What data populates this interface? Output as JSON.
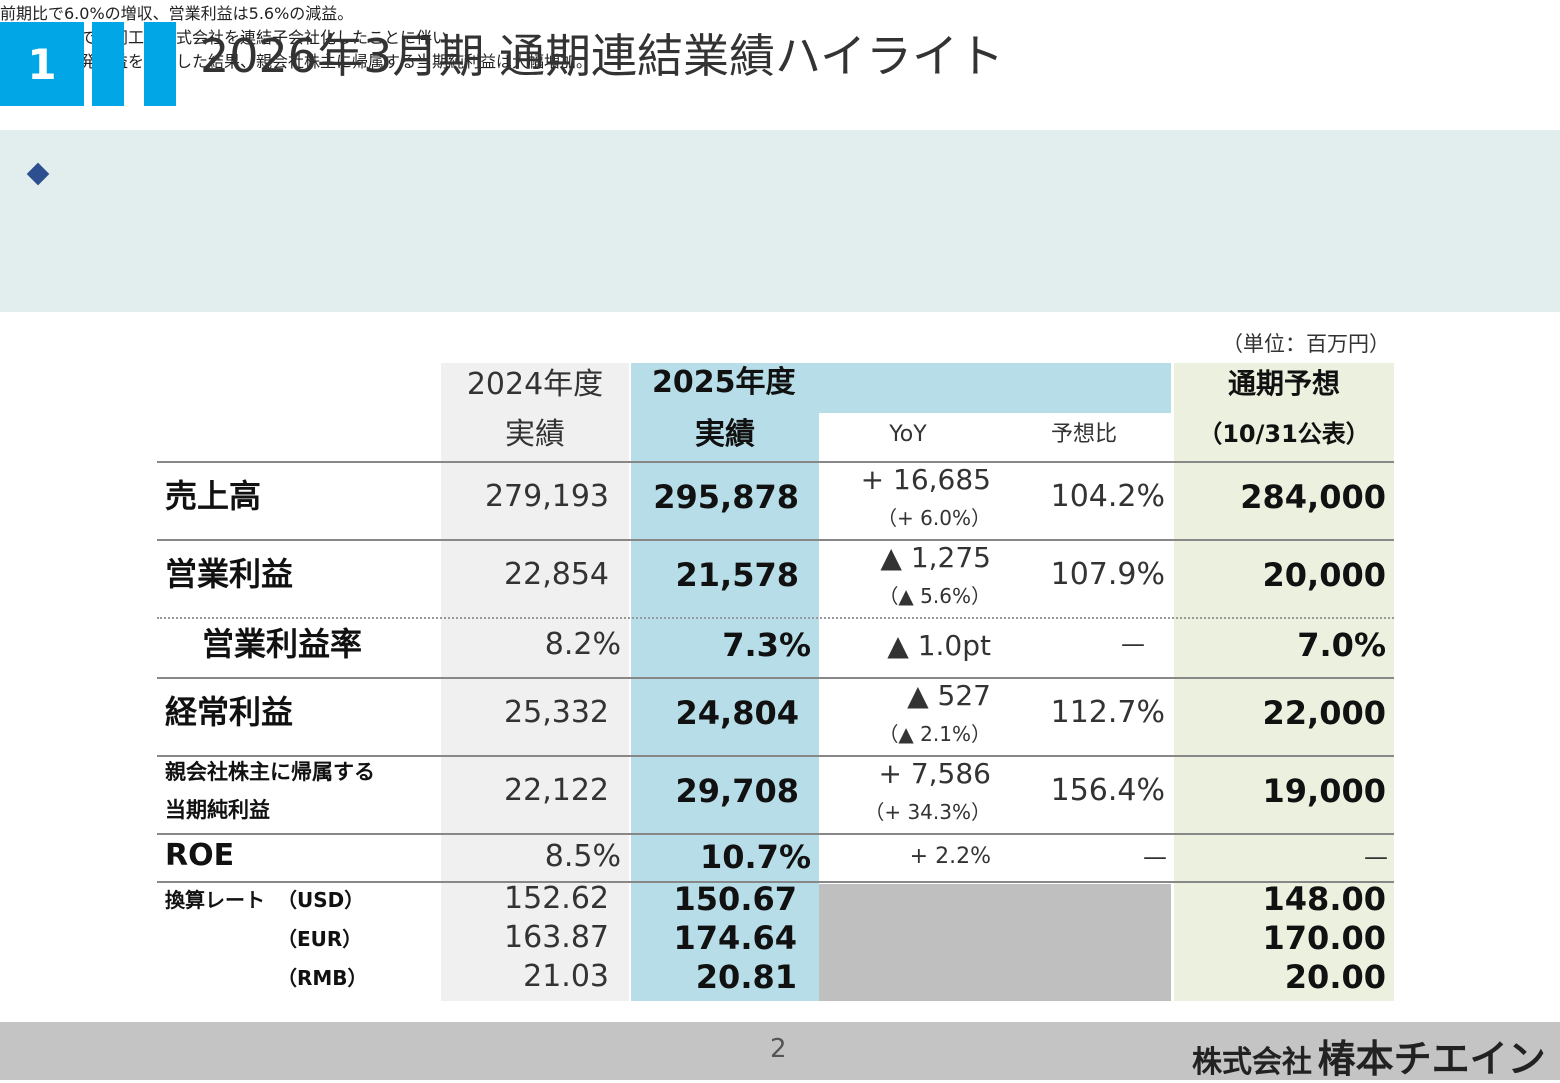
{
  "header": {
    "section_number": "1",
    "title": "2026年3月期 通期連結業績ハイライト"
  },
  "summary": {
    "lines": [
      "前期比で6.0%の増収、営業利益は5.6%の減益。",
      "１月１日付で大同工業株式会社を連結子会社化したことに伴い、",
      "負ののれん発生益を計上した結果、親会社株主に帰属する当期純利益は大幅増加。"
    ]
  },
  "table": {
    "unit": "（単位：百万円）",
    "headers": {
      "prev_year": "2024年度",
      "prev_sub": "実績",
      "cur_year": "2025年度",
      "cur_sub": "実績",
      "yoy": "YoY",
      "vs_forecast": "予想比",
      "forecast": "通期予想",
      "forecast_sub": "（10/31公表）"
    },
    "rows": [
      {
        "label": "売上高",
        "prev": "279,193",
        "cur": "295,878",
        "yoy": "+ 16,685",
        "yoy_pct": "（+ 6.0%）",
        "vs": "104.2%",
        "fc": "284,000"
      },
      {
        "label": "営業利益",
        "prev": "22,854",
        "cur": "21,578",
        "yoy": "▲ 1,275",
        "yoy_pct": "（▲ 5.6%）",
        "vs": "107.9%",
        "fc": "20,000"
      },
      {
        "label": "営業利益率",
        "prev": "8.2%",
        "cur": "7.3%",
        "yoy": "▲ 1.0pt",
        "vs": "—",
        "fc": "7.0%"
      },
      {
        "label": "経常利益",
        "prev": "25,332",
        "cur": "24,804",
        "yoy": "▲ 527",
        "yoy_pct": "（▲ 2.1%）",
        "vs": "112.7%",
        "fc": "22,000"
      },
      {
        "label1": "親会社株主に帰属する",
        "label2": "当期純利益",
        "prev": "22,122",
        "cur": "29,708",
        "yoy": "+ 7,586",
        "yoy_pct": "（+ 34.3%）",
        "vs": "156.4%",
        "fc": "19,000"
      },
      {
        "label": "ROE",
        "prev": "8.5%",
        "cur": "10.7%",
        "yoy": "+ 2.2%",
        "vs": "—",
        "fc": "—"
      }
    ],
    "rates": {
      "label": "換算レート",
      "items": [
        {
          "ccy": "（USD）",
          "prev": "152.62",
          "cur": "150.67",
          "fc": "148.00"
        },
        {
          "ccy": "（EUR）",
          "prev": "163.87",
          "cur": "174.64",
          "fc": "170.00"
        },
        {
          "ccy": "（RMB）",
          "prev": "21.03",
          "cur": "20.81",
          "fc": "20.00"
        }
      ]
    }
  },
  "footer": {
    "page": "2",
    "company_small": "株式会社",
    "company_big": "椿本チエイン"
  }
}
